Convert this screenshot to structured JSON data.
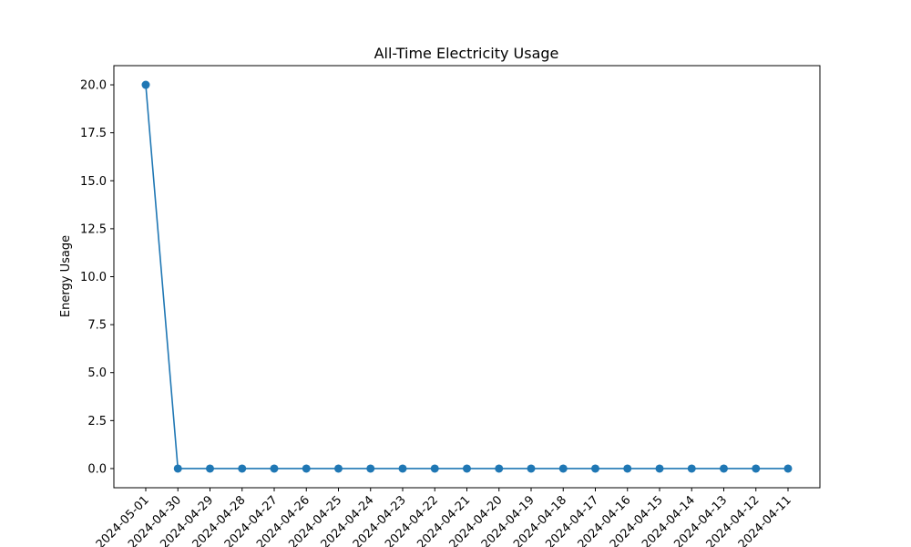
{
  "chart_data": {
    "type": "line",
    "title": "All-Time Electricity Usage",
    "xlabel": "",
    "ylabel": "Energy Usage",
    "categories": [
      "2024-05-01",
      "2024-04-30",
      "2024-04-29",
      "2024-04-28",
      "2024-04-27",
      "2024-04-26",
      "2024-04-25",
      "2024-04-24",
      "2024-04-23",
      "2024-04-22",
      "2024-04-21",
      "2024-04-20",
      "2024-04-19",
      "2024-04-18",
      "2024-04-17",
      "2024-04-16",
      "2024-04-15",
      "2024-04-14",
      "2024-04-13",
      "2024-04-12",
      "2024-04-11"
    ],
    "series": [
      {
        "values": [
          20,
          0,
          0,
          0,
          0,
          0,
          0,
          0,
          0,
          0,
          0,
          0,
          0,
          0,
          0,
          0,
          0,
          0,
          0,
          0,
          0
        ]
      }
    ],
    "ylim": [
      -1,
      21
    ],
    "yticks": [
      "0.0",
      "2.5",
      "5.0",
      "7.5",
      "10.0",
      "12.5",
      "15.0",
      "17.5",
      "20.0"
    ],
    "grid": false,
    "line_color": "#1f77b4"
  }
}
